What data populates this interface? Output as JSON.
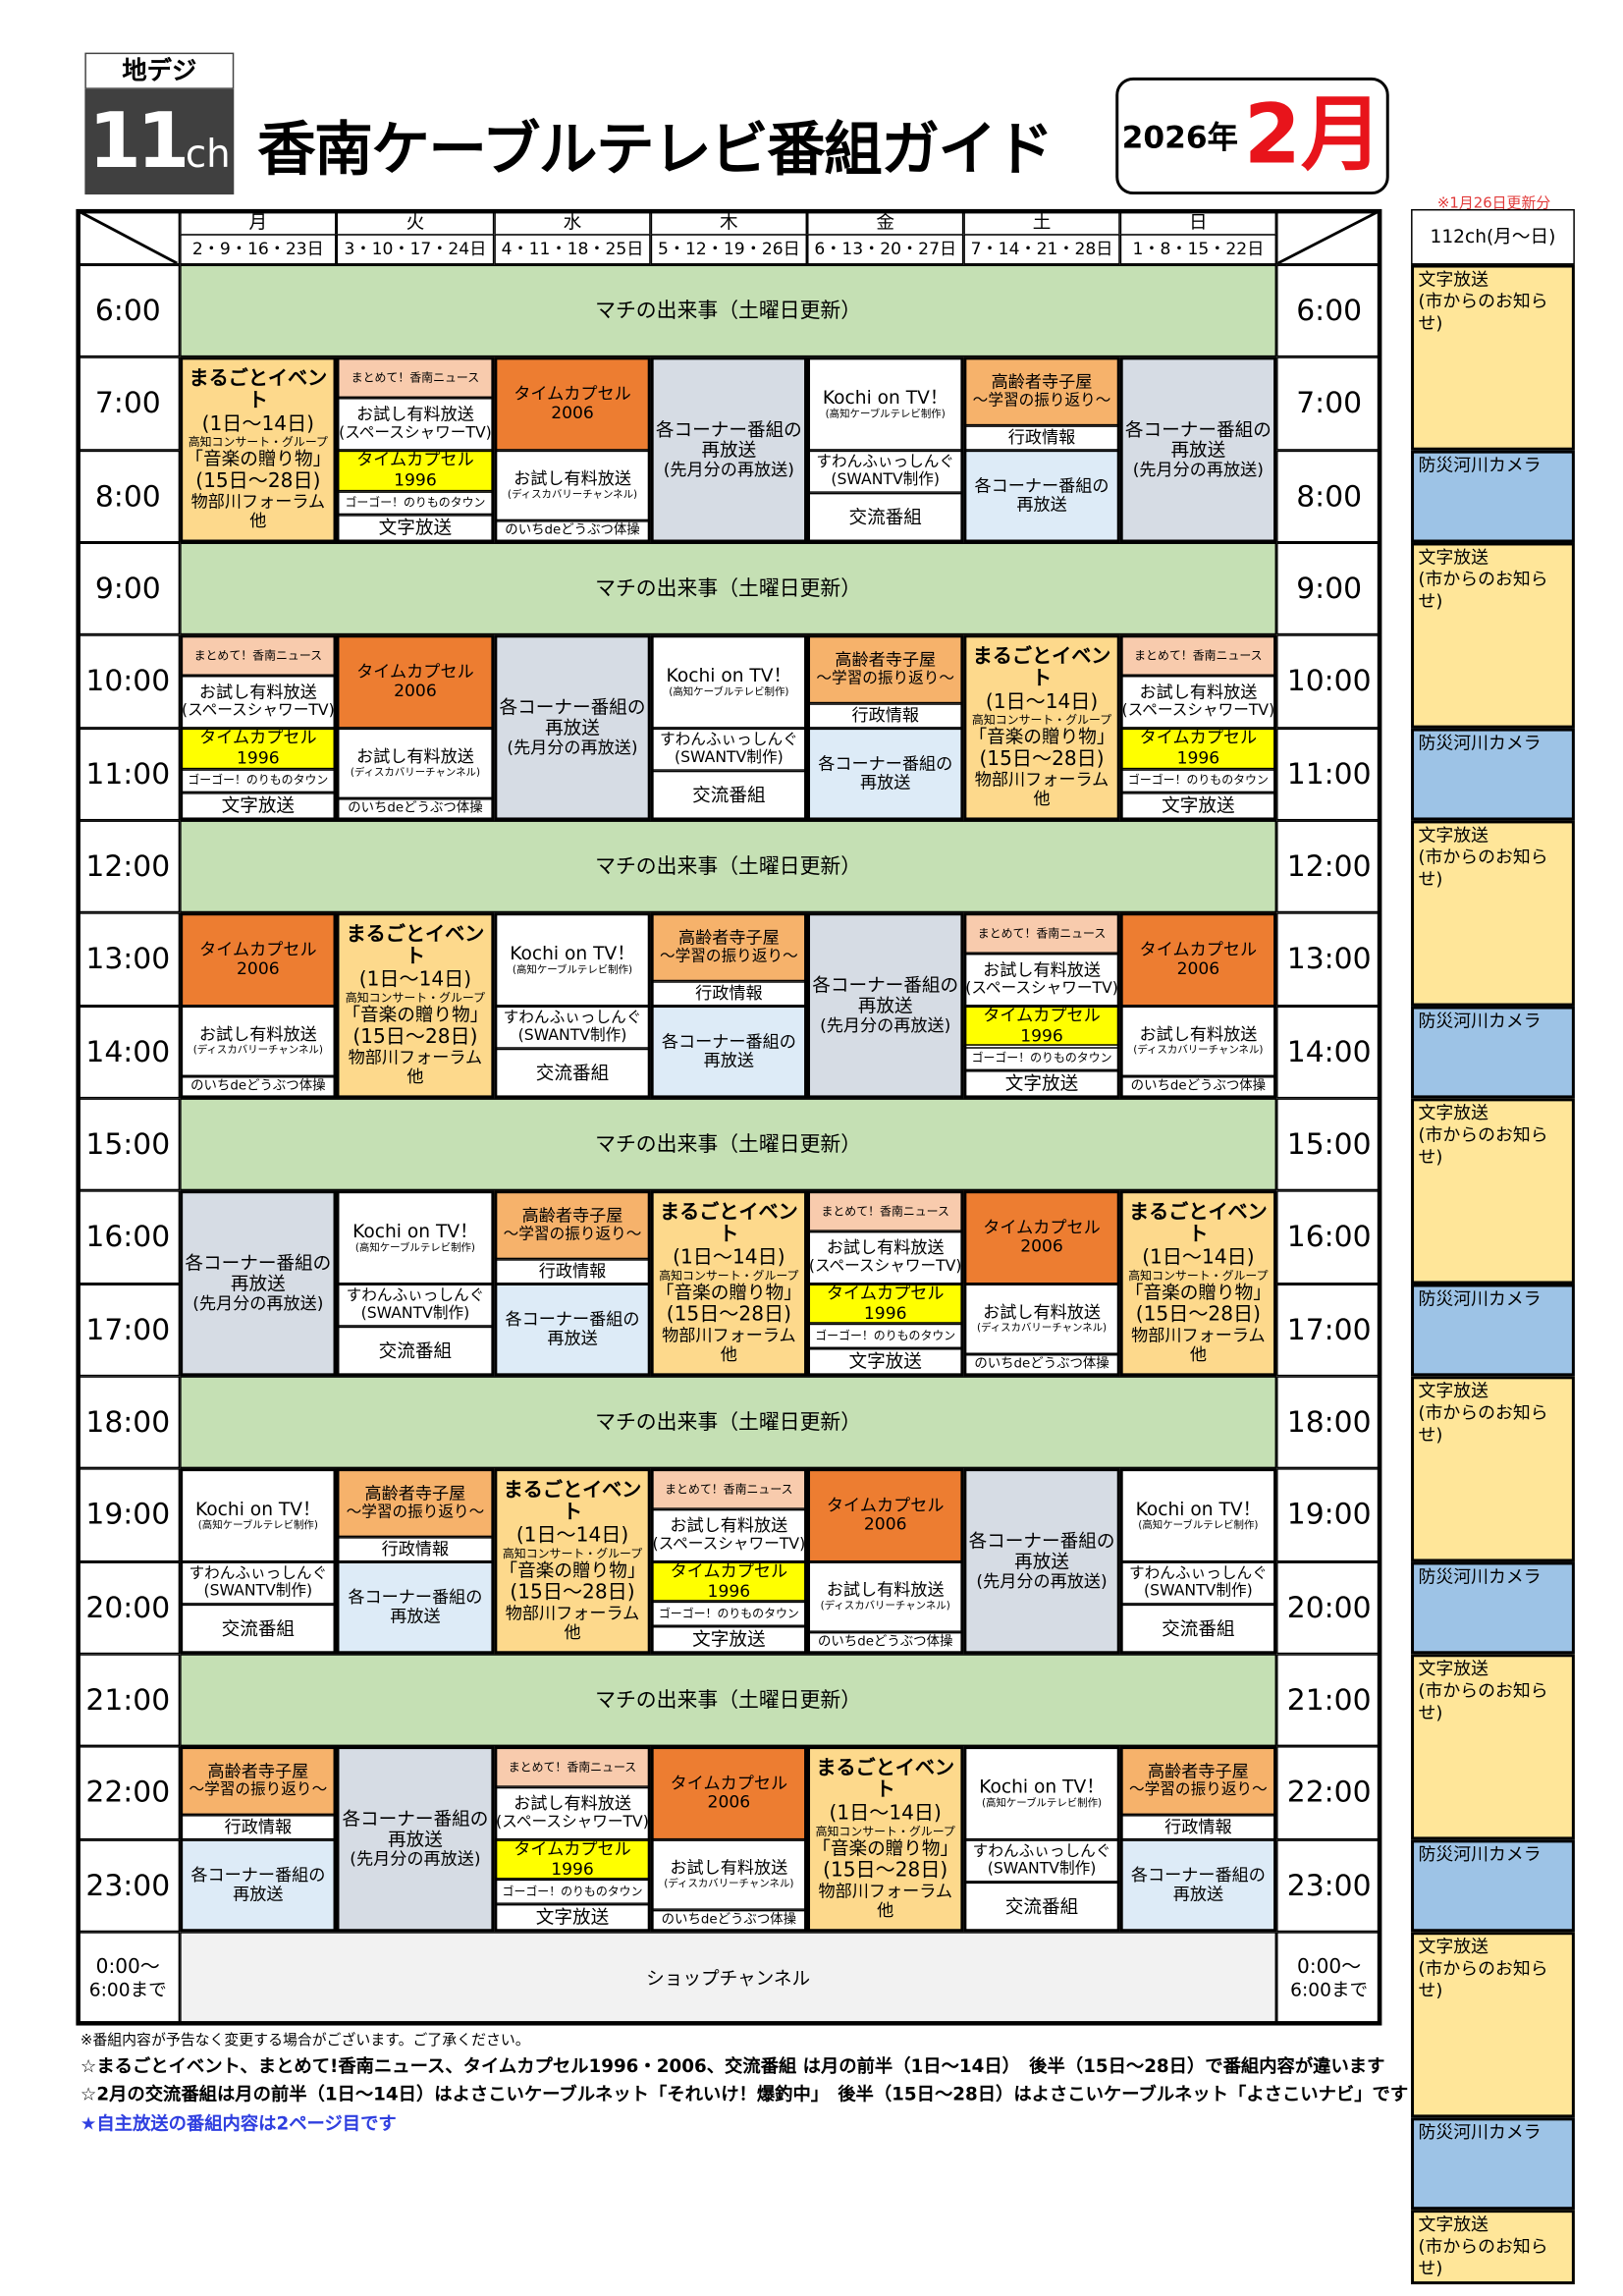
{
  "header": {
    "chip_top": "地デジ",
    "chip_num": "11",
    "chip_unit": "ch",
    "title": "香南ケーブルテレビ番組ガイド",
    "year": "2026年",
    "month": "2月",
    "updated": "※1月26日更新分"
  },
  "days": [
    {
      "name": "月",
      "dates": "2・9・16・23日"
    },
    {
      "name": "火",
      "dates": "3・10・17・24日"
    },
    {
      "name": "水",
      "dates": "4・11・18・25日"
    },
    {
      "name": "木",
      "dates": "5・12・19・26日"
    },
    {
      "name": "金",
      "dates": "6・13・20・27日"
    },
    {
      "name": "土",
      "dates": "7・14・21・28日"
    },
    {
      "name": "日",
      "dates": "1・8・15・22日"
    }
  ],
  "times": [
    "6:00",
    "7:00",
    "8:00",
    "9:00",
    "10:00",
    "11:00",
    "12:00",
    "13:00",
    "14:00",
    "15:00",
    "16:00",
    "17:00",
    "18:00",
    "19:00",
    "20:00",
    "21:00",
    "22:00",
    "23:00"
  ],
  "night": {
    "time_1": "0:00～",
    "time_2": "6:00まで",
    "program": "ショップチャンネル"
  },
  "green_band": "マチの出来事（土曜日更新）",
  "programs": {
    "marugoto": {
      "l0": "まるごとイベント",
      "l1": "(1日～14日)",
      "l2": "高知コンサート・グループ",
      "l3": "「音楽の贈り物」",
      "l4": "(15日～28日)",
      "l5": "物部川フォーラム",
      "l6": "他"
    },
    "matomete": {
      "news": "まとめて！香南ニュース",
      "trial": "お試し有料放送",
      "trial_sub": "(スペースシャワーTV)",
      "tc": "タイムカプセル1996",
      "gogo": "ゴーゴー！のりものタウン",
      "moji": "文字放送"
    },
    "tc2006": {
      "tc": "タイムカプセル2006",
      "trial": "お試し有料放送",
      "trial_sub": "(ディスカバリーチャンネル)",
      "noichi": "のいちdeどうぶつ体操"
    },
    "corner": {
      "l0": "各コーナー番組の",
      "l1": "再放送",
      "l2": "(先月分の再放送)"
    },
    "kochi": {
      "kochi": "Kochi on TV！",
      "kochi_sub": "(高知ケーブルテレビ制作)",
      "swan": "すわんふぃっしんぐ",
      "swan_sub": "(SWANTV制作)",
      "koryu": "交流番組"
    },
    "koreisha": {
      "k0": "高齢者寺子屋",
      "k1": "～学習の振り返り～",
      "gyosei": "行政情報",
      "c0": "各コーナー番組の",
      "c1": "再放送"
    }
  },
  "blocks": [
    {
      "start": "7:00",
      "days": [
        "marugoto",
        "matomete",
        "tc2006",
        "corner",
        "kochi",
        "koreisha",
        "corner"
      ]
    },
    {
      "start": "10:00",
      "days": [
        "matomete",
        "tc2006",
        "corner",
        "kochi",
        "koreisha",
        "marugoto",
        "matomete"
      ]
    },
    {
      "start": "13:00",
      "days": [
        "tc2006",
        "marugoto",
        "kochi",
        "koreisha",
        "corner",
        "matomete",
        "tc2006"
      ]
    },
    {
      "start": "16:00",
      "days": [
        "corner",
        "kochi",
        "koreisha",
        "marugoto",
        "matomete",
        "tc2006",
        "marugoto"
      ]
    },
    {
      "start": "19:00",
      "days": [
        "kochi",
        "koreisha",
        "marugoto",
        "matomete",
        "tc2006",
        "corner",
        "kochi"
      ]
    },
    {
      "start": "22:00",
      "days": [
        "koreisha",
        "corner",
        "matomete",
        "tc2006",
        "marugoto",
        "kochi",
        "koreisha"
      ]
    }
  ],
  "ch112": {
    "title": "112ch(月～日)",
    "moji": "文字放送",
    "moji_sub": "(市からのお知らせ)",
    "camera": "防災河川カメラ",
    "slots": [
      {
        "type": "moji",
        "hours": 2
      },
      {
        "type": "camera",
        "hours": 1
      },
      {
        "type": "moji",
        "hours": 2
      },
      {
        "type": "camera",
        "hours": 1
      },
      {
        "type": "moji",
        "hours": 2
      },
      {
        "type": "camera",
        "hours": 1
      },
      {
        "type": "moji",
        "hours": 2
      },
      {
        "type": "camera",
        "hours": 1
      },
      {
        "type": "moji",
        "hours": 2
      },
      {
        "type": "camera",
        "hours": 1
      },
      {
        "type": "moji",
        "hours": 2
      },
      {
        "type": "camera",
        "hours": 1
      },
      {
        "type": "moji",
        "hours": 2
      },
      {
        "type": "camera",
        "hours": 1
      },
      {
        "type": "moji",
        "hours": 1
      }
    ]
  },
  "notes": {
    "n1": "※番組内容が予告なく変更する場合がございます。ご了承ください。",
    "n2": "☆まるごとイベント、まとめて!香南ニュース、タイムカプセル1996・2006、交流番組 は月の前半（1日～14日）　後半（15日～28日）で番組内容が違います",
    "n3": "☆2月の交流番組は月の前半（1日～14日）はよさこいケーブルネット「それいけ！爆釣中」　後半（15日～28日）はよさこいケーブルネット「よさこいナビ」です",
    "n4": "★自主放送の番組内容は2ページ目です"
  },
  "colors": {
    "green": "#c5e0b4",
    "marugoto": "#fdd98c",
    "news": "#f8cbad",
    "tc1996": "#ffff00",
    "tc2006": "#ed7d31",
    "corner": "#d6dce4",
    "koreisha": "#f6b26b",
    "lightblue": "#ddebf7",
    "moji112": "#ffe699",
    "camera": "#9dc3e6",
    "night": "#f2f2f2",
    "month": "#e8141b"
  }
}
